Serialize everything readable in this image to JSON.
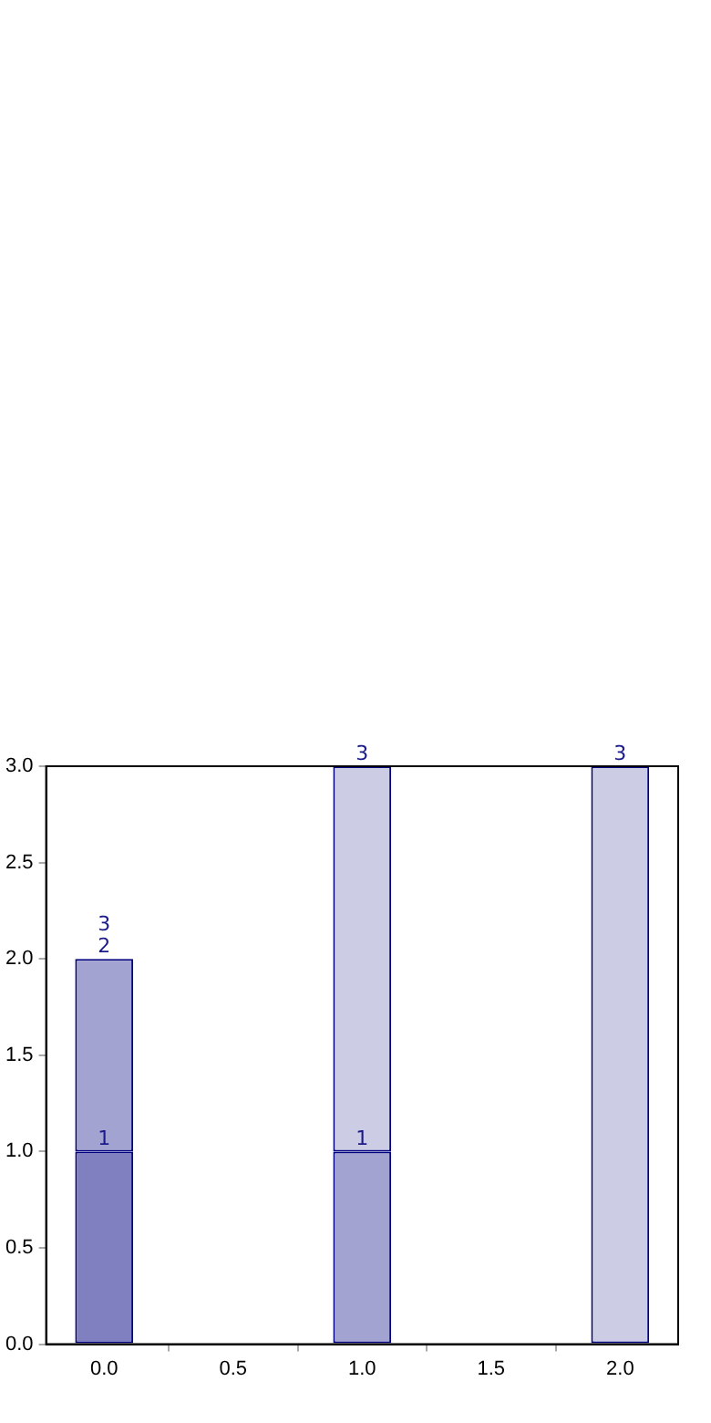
{
  "chart_data": {
    "type": "bar",
    "stacked": true,
    "x": [
      0,
      1,
      2
    ],
    "series": [
      {
        "color": "#8080c0",
        "values": [
          1,
          null,
          null
        ]
      },
      {
        "color": "#a3a3d2",
        "values": [
          1,
          1,
          null
        ]
      },
      {
        "color": "#ccccE5",
        "values": [
          null,
          2,
          3
        ]
      }
    ],
    "annotations": [
      {
        "text": "1",
        "x": 0,
        "y": 1
      },
      {
        "text": "2",
        "x": 0,
        "y": 2
      },
      {
        "text": "3",
        "x": 0,
        "y": 2
      },
      {
        "text": "1",
        "x": 1,
        "y": 1
      },
      {
        "text": "3",
        "x": 1,
        "y": 3
      },
      {
        "text": "3",
        "x": 2,
        "y": 3
      }
    ],
    "xlim": [
      -0.225,
      2.225
    ],
    "xticks": [
      {
        "value": 0,
        "label": "0.0"
      },
      0.5,
      {
        "value": 1,
        "label": "1.0"
      },
      1.5,
      {
        "value": 2,
        "label": "2.0"
      }
    ],
    "ylim": [
      0,
      3
    ],
    "yticks": [
      {
        "value": 0,
        "label": "0.0"
      },
      0.5,
      {
        "value": 1,
        "label": "1.0"
      },
      1.5,
      {
        "value": 2,
        "label": "2.0"
      },
      2.5,
      {
        "value": 3,
        "label": "3.0"
      }
    ],
    "grid": false,
    "legend": false
  }
}
